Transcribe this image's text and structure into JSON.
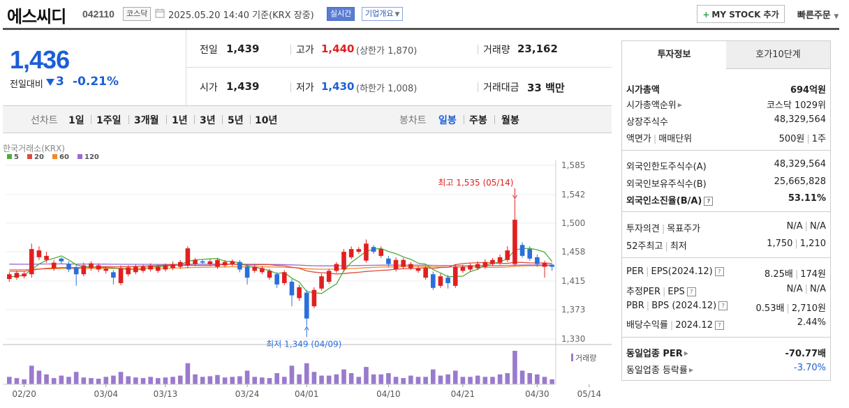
{
  "header": {
    "stock_name": "에스씨디",
    "stock_code": "042110",
    "market_badge": "코스닥",
    "timestamp": "2025.05.20 14:40  기준(KRX 장중)",
    "realtime_badge": "실시간",
    "company_info_button": "기업개요",
    "mystock_button": "MY STOCK 추가",
    "quick_order": "빠른주문"
  },
  "summary": {
    "current_price": "1,436",
    "change_label": "전일대비",
    "change_value": "3",
    "change_rate": "-0.21%",
    "prev_close_label": "전일",
    "prev_close": "1,439",
    "high_label": "고가",
    "high": "1,440",
    "upper_limit": "(상한가 1,870)",
    "volume_label": "거래량",
    "volume": "23,162",
    "open_label": "시가",
    "open": "1,439",
    "low_label": "저가",
    "low": "1,430",
    "lower_limit": "(하한가 1,008)",
    "amount_label": "거래대금",
    "amount": "33 백만"
  },
  "period_bar": {
    "line_chart_label": "선차트",
    "line_periods": [
      "1일",
      "1주일",
      "3개월",
      "1년",
      "3년",
      "5년",
      "10년"
    ],
    "candle_chart_label": "봉차트",
    "candle_periods": [
      "일봉",
      "주봉",
      "월봉"
    ],
    "active_candle": "일봉"
  },
  "chart_data": {
    "type": "candlestick",
    "source_label": "한국거래소(KRX)",
    "ma_legend": [
      {
        "name": "5",
        "color": "#4cae3a"
      },
      {
        "name": "20",
        "color": "#e04a3a"
      },
      {
        "name": "60",
        "color": "#f08a2a"
      },
      {
        "name": "120",
        "color": "#9a6ad0"
      }
    ],
    "y_ticks": [
      "1,585",
      "1,542",
      "1,500",
      "1,458",
      "1,415",
      "1,373",
      "1,330"
    ],
    "ylim": [
      1330,
      1585
    ],
    "x_ticks": [
      "02/20",
      "03/04",
      "03/13",
      "03/24",
      "04/01",
      "04/10",
      "04/21",
      "04/30",
      "05/14"
    ],
    "annotation_high": "최고 1,535 (05/14)",
    "annotation_low": "최저 1,349 (04/09)",
    "volume_legend": "거래량",
    "candles": [
      {
        "o": 1418,
        "c": 1425,
        "h": 1428,
        "l": 1414
      },
      {
        "o": 1420,
        "c": 1427,
        "h": 1430,
        "l": 1417
      },
      {
        "o": 1422,
        "c": 1426,
        "h": 1429,
        "l": 1419
      },
      {
        "o": 1425,
        "c": 1462,
        "h": 1470,
        "l": 1420
      },
      {
        "o": 1450,
        "c": 1460,
        "h": 1466,
        "l": 1446
      },
      {
        "o": 1446,
        "c": 1452,
        "h": 1458,
        "l": 1442
      },
      {
        "o": 1434,
        "c": 1442,
        "h": 1446,
        "l": 1430
      },
      {
        "o": 1448,
        "c": 1444,
        "h": 1450,
        "l": 1440
      },
      {
        "o": 1440,
        "c": 1432,
        "h": 1444,
        "l": 1428
      },
      {
        "o": 1435,
        "c": 1425,
        "h": 1438,
        "l": 1408
      },
      {
        "o": 1425,
        "c": 1438,
        "h": 1442,
        "l": 1422
      },
      {
        "o": 1434,
        "c": 1441,
        "h": 1444,
        "l": 1430
      },
      {
        "o": 1432,
        "c": 1438,
        "h": 1441,
        "l": 1428
      },
      {
        "o": 1430,
        "c": 1433,
        "h": 1436,
        "l": 1426
      },
      {
        "o": 1428,
        "c": 1420,
        "h": 1431,
        "l": 1410
      },
      {
        "o": 1412,
        "c": 1434,
        "h": 1438,
        "l": 1409
      },
      {
        "o": 1425,
        "c": 1435,
        "h": 1438,
        "l": 1422
      },
      {
        "o": 1428,
        "c": 1436,
        "h": 1439,
        "l": 1425
      },
      {
        "o": 1430,
        "c": 1436,
        "h": 1439,
        "l": 1427
      },
      {
        "o": 1432,
        "c": 1438,
        "h": 1441,
        "l": 1429
      },
      {
        "o": 1430,
        "c": 1436,
        "h": 1439,
        "l": 1427
      },
      {
        "o": 1432,
        "c": 1438,
        "h": 1441,
        "l": 1429
      },
      {
        "o": 1434,
        "c": 1440,
        "h": 1444,
        "l": 1431
      },
      {
        "o": 1436,
        "c": 1443,
        "h": 1446,
        "l": 1433
      },
      {
        "o": 1438,
        "c": 1463,
        "h": 1466,
        "l": 1434
      },
      {
        "o": 1440,
        "c": 1446,
        "h": 1449,
        "l": 1437
      },
      {
        "o": 1444,
        "c": 1442,
        "h": 1447,
        "l": 1440
      },
      {
        "o": 1440,
        "c": 1444,
        "h": 1447,
        "l": 1437
      },
      {
        "o": 1436,
        "c": 1446,
        "h": 1449,
        "l": 1433
      },
      {
        "o": 1438,
        "c": 1443,
        "h": 1446,
        "l": 1435
      },
      {
        "o": 1440,
        "c": 1444,
        "h": 1447,
        "l": 1437
      },
      {
        "o": 1443,
        "c": 1432,
        "h": 1446,
        "l": 1428
      },
      {
        "o": 1436,
        "c": 1420,
        "h": 1440,
        "l": 1410
      },
      {
        "o": 1430,
        "c": 1436,
        "h": 1439,
        "l": 1427
      },
      {
        "o": 1428,
        "c": 1434,
        "h": 1437,
        "l": 1425
      },
      {
        "o": 1420,
        "c": 1430,
        "h": 1433,
        "l": 1417
      },
      {
        "o": 1425,
        "c": 1410,
        "h": 1428,
        "l": 1405
      },
      {
        "o": 1412,
        "c": 1428,
        "h": 1431,
        "l": 1409
      },
      {
        "o": 1414,
        "c": 1394,
        "h": 1418,
        "l": 1378
      },
      {
        "o": 1390,
        "c": 1406,
        "h": 1410,
        "l": 1386
      },
      {
        "o": 1398,
        "c": 1360,
        "h": 1402,
        "l": 1349
      },
      {
        "o": 1378,
        "c": 1402,
        "h": 1406,
        "l": 1375
      },
      {
        "o": 1404,
        "c": 1422,
        "h": 1426,
        "l": 1401
      },
      {
        "o": 1414,
        "c": 1430,
        "h": 1433,
        "l": 1411
      },
      {
        "o": 1430,
        "c": 1440,
        "h": 1443,
        "l": 1427
      },
      {
        "o": 1432,
        "c": 1458,
        "h": 1462,
        "l": 1429
      },
      {
        "o": 1450,
        "c": 1462,
        "h": 1466,
        "l": 1447
      },
      {
        "o": 1458,
        "c": 1462,
        "h": 1465,
        "l": 1455
      },
      {
        "o": 1445,
        "c": 1470,
        "h": 1476,
        "l": 1442
      },
      {
        "o": 1465,
        "c": 1458,
        "h": 1468,
        "l": 1455
      },
      {
        "o": 1452,
        "c": 1462,
        "h": 1466,
        "l": 1449
      },
      {
        "o": 1448,
        "c": 1440,
        "h": 1452,
        "l": 1436
      },
      {
        "o": 1432,
        "c": 1446,
        "h": 1450,
        "l": 1429
      },
      {
        "o": 1436,
        "c": 1446,
        "h": 1449,
        "l": 1433
      },
      {
        "o": 1434,
        "c": 1440,
        "h": 1443,
        "l": 1431
      },
      {
        "o": 1430,
        "c": 1434,
        "h": 1437,
        "l": 1427
      },
      {
        "o": 1420,
        "c": 1434,
        "h": 1437,
        "l": 1417
      },
      {
        "o": 1425,
        "c": 1405,
        "h": 1429,
        "l": 1402
      },
      {
        "o": 1408,
        "c": 1422,
        "h": 1426,
        "l": 1405
      },
      {
        "o": 1420,
        "c": 1412,
        "h": 1424,
        "l": 1404
      },
      {
        "o": 1408,
        "c": 1436,
        "h": 1440,
        "l": 1405
      },
      {
        "o": 1430,
        "c": 1436,
        "h": 1439,
        "l": 1427
      },
      {
        "o": 1432,
        "c": 1438,
        "h": 1441,
        "l": 1429
      },
      {
        "o": 1434,
        "c": 1440,
        "h": 1444,
        "l": 1431
      },
      {
        "o": 1436,
        "c": 1443,
        "h": 1447,
        "l": 1433
      },
      {
        "o": 1440,
        "c": 1446,
        "h": 1449,
        "l": 1437
      },
      {
        "o": 1442,
        "c": 1450,
        "h": 1454,
        "l": 1439
      },
      {
        "o": 1446,
        "c": 1460,
        "h": 1466,
        "l": 1443
      },
      {
        "o": 1440,
        "c": 1505,
        "h": 1535,
        "l": 1437
      },
      {
        "o": 1468,
        "c": 1452,
        "h": 1472,
        "l": 1449
      },
      {
        "o": 1462,
        "c": 1448,
        "h": 1466,
        "l": 1445
      },
      {
        "o": 1450,
        "c": 1440,
        "h": 1454,
        "l": 1436
      },
      {
        "o": 1436,
        "c": 1442,
        "h": 1445,
        "l": 1420
      },
      {
        "o": 1439,
        "c": 1436,
        "h": 1440,
        "l": 1430
      }
    ],
    "volumes": [
      12,
      10,
      8,
      30,
      22,
      16,
      10,
      14,
      12,
      20,
      11,
      10,
      9,
      12,
      14,
      20,
      13,
      11,
      10,
      12,
      10,
      11,
      12,
      14,
      34,
      16,
      12,
      13,
      15,
      11,
      12,
      13,
      22,
      12,
      11,
      10,
      18,
      12,
      30,
      16,
      34,
      20,
      14,
      14,
      16,
      24,
      18,
      12,
      28,
      16,
      16,
      18,
      12,
      10,
      14,
      12,
      12,
      24,
      14,
      16,
      22,
      12,
      12,
      14,
      12,
      12,
      16,
      18,
      54,
      22,
      18,
      16,
      12,
      8
    ]
  },
  "right_panel": {
    "tab_invest": "투자정보",
    "tab_orderbook": "호가10단계",
    "market_cap_label": "시가총액",
    "market_cap": "694억원",
    "market_cap_rank_label": "시가총액순위",
    "market_cap_rank": "코스닥 1029위",
    "listed_shares_label": "상장주식수",
    "listed_shares": "48,329,564",
    "par_unit_label_a": "액면가",
    "par_unit_label_b": "매매단위",
    "par_value": "500원",
    "trade_unit": "1주",
    "foreign_limit_label": "외국인한도주식수(A)",
    "foreign_limit": "48,329,564",
    "foreign_hold_label": "외국인보유주식수(B)",
    "foreign_hold": "25,665,828",
    "foreign_ratio_label": "외국인소진율(B/A)",
    "foreign_ratio": "53.11%",
    "opinion_label_a": "투자의견",
    "opinion_label_b": "목표주가",
    "opinion": "N/A",
    "target_price": "N/A",
    "week52_label_a": "52주최고",
    "week52_label_b": "최저",
    "week52_high": "1,750",
    "week52_low": "1,210",
    "per_label_a": "PER",
    "per_label_b": "EPS(2024.12)",
    "per": "8.25배",
    "eps": "174원",
    "est_per_label_a": "추정PER",
    "est_per_label_b": "EPS",
    "est_per": "N/A",
    "est_eps": "N/A",
    "pbr_label_a": "PBR",
    "pbr_label_b": "BPS (2024.12)",
    "pbr": "0.53배",
    "bps": "2,710원",
    "dividend_label_a": "배당수익률",
    "dividend_label_b": "2024.12",
    "dividend": "2.44%",
    "sector_per_label": "동일업종 PER",
    "sector_per": "-70.77배",
    "sector_change_label": "동일업종 등락률",
    "sector_change": "-3.70%"
  }
}
